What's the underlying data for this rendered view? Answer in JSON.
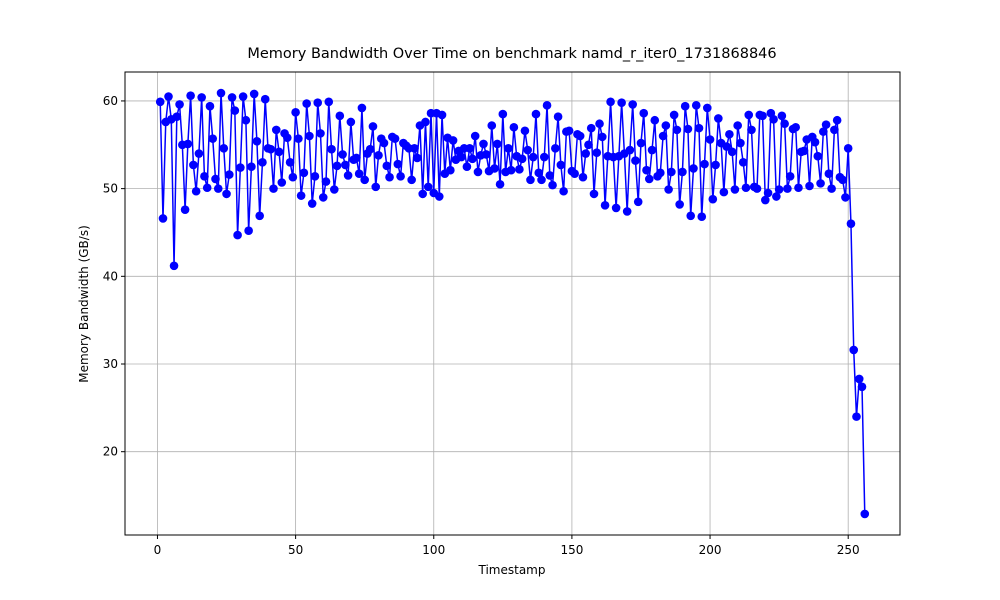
{
  "chart_data": {
    "type": "line",
    "title": "Memory Bandwidth Over Time on benchmark namd_r_iter0_1731868846",
    "x_label": "Timestamp",
    "y_label": "Memory Bandwidth (GB/s)",
    "x": [
      1,
      2,
      3,
      4,
      5,
      6,
      7,
      8,
      9,
      10,
      11,
      12,
      13,
      14,
      15,
      16,
      17,
      18,
      19,
      20,
      21,
      22,
      23,
      24,
      25,
      26,
      27,
      28,
      29,
      30,
      31,
      32,
      33,
      34,
      35,
      36,
      37,
      38,
      39,
      40,
      41,
      42,
      43,
      44,
      45,
      46,
      47,
      48,
      49,
      50,
      51,
      52,
      53,
      54,
      55,
      56,
      57,
      58,
      59,
      60,
      61,
      62,
      63,
      64,
      65,
      66,
      67,
      68,
      69,
      70,
      71,
      72,
      73,
      74,
      75,
      76,
      77,
      78,
      79,
      80,
      81,
      82,
      83,
      84,
      85,
      86,
      87,
      88,
      89,
      90,
      91,
      92,
      93,
      94,
      95,
      96,
      97,
      98,
      99,
      100,
      101,
      102,
      103,
      104,
      105,
      106,
      107,
      108,
      109,
      110,
      111,
      112,
      113,
      114,
      115,
      116,
      117,
      118,
      119,
      120,
      121,
      122,
      123,
      124,
      125,
      126,
      127,
      128,
      129,
      130,
      131,
      132,
      133,
      134,
      135,
      136,
      137,
      138,
      139,
      140,
      141,
      142,
      143,
      144,
      145,
      146,
      147,
      148,
      149,
      150,
      151,
      152,
      153,
      154,
      155,
      156,
      157,
      158,
      159,
      160,
      161,
      162,
      163,
      164,
      165,
      166,
      167,
      168,
      169,
      170,
      171,
      172,
      173,
      174,
      175,
      176,
      177,
      178,
      179,
      180,
      181,
      182,
      183,
      184,
      185,
      186,
      187,
      188,
      189,
      190,
      191,
      192,
      193,
      194,
      195,
      196,
      197,
      198,
      199,
      200,
      201,
      202,
      203,
      204,
      205,
      206,
      207,
      208,
      209,
      210,
      211,
      212,
      213,
      214,
      215,
      216,
      217,
      218,
      219,
      220,
      221,
      222,
      223,
      224,
      225,
      226,
      227,
      228,
      229,
      230,
      231,
      232,
      233,
      234,
      235,
      236,
      237,
      238,
      239,
      240,
      241,
      242,
      243,
      244,
      245,
      246,
      247,
      248,
      249,
      250,
      251,
      252,
      253,
      254,
      255,
      256
    ],
    "series": [
      {
        "name": "Memory Bandwidth",
        "color": "#0000ff",
        "values": [
          59.9,
          46.6,
          57.6,
          60.5,
          57.9,
          41.2,
          58.2,
          59.6,
          55.0,
          47.6,
          55.1,
          60.6,
          52.7,
          49.7,
          54.0,
          60.4,
          51.4,
          50.1,
          59.4,
          55.7,
          51.1,
          50.0,
          60.9,
          54.6,
          49.4,
          51.6,
          60.4,
          58.9,
          44.7,
          52.4,
          60.5,
          57.8,
          45.2,
          52.5,
          60.8,
          55.4,
          46.9,
          53.0,
          60.2,
          54.6,
          54.5,
          50.0,
          56.7,
          54.2,
          50.7,
          56.3,
          55.8,
          53.0,
          51.3,
          58.7,
          55.7,
          49.2,
          51.8,
          59.7,
          56.0,
          48.3,
          51.4,
          59.8,
          56.3,
          49.0,
          50.8,
          59.9,
          54.5,
          49.9,
          52.6,
          58.3,
          53.9,
          52.7,
          51.5,
          57.6,
          53.3,
          53.5,
          51.7,
          59.2,
          51.0,
          54.0,
          54.5,
          57.1,
          50.2,
          53.8,
          55.7,
          55.2,
          52.6,
          51.3,
          55.9,
          55.7,
          52.8,
          51.4,
          55.2,
          54.9,
          54.6,
          51.0,
          54.6,
          53.5,
          57.2,
          49.4,
          57.6,
          50.2,
          58.6,
          49.5,
          58.6,
          49.1,
          58.4,
          51.7,
          55.8,
          52.1,
          55.5,
          53.3,
          54.3,
          53.6,
          54.6,
          52.5,
          54.6,
          53.4,
          56.0,
          51.9,
          53.8,
          55.1,
          53.9,
          52.0,
          57.2,
          52.3,
          55.1,
          50.5,
          58.5,
          51.9,
          54.6,
          52.1,
          57.0,
          53.7,
          52.2,
          53.4,
          56.6,
          54.4,
          51.0,
          53.6,
          58.5,
          51.8,
          51.0,
          53.6,
          59.5,
          51.5,
          50.4,
          54.6,
          58.2,
          52.7,
          49.7,
          56.5,
          56.6,
          52.0,
          51.7,
          56.2,
          56.0,
          51.3,
          54.0,
          55.0,
          56.9,
          49.4,
          54.1,
          57.4,
          55.9,
          48.1,
          53.7,
          59.9,
          53.6,
          47.8,
          53.7,
          59.8,
          54.0,
          47.4,
          54.4,
          59.6,
          53.2,
          48.5,
          55.2,
          58.6,
          52.1,
          51.1,
          54.4,
          57.8,
          51.4,
          51.8,
          56.0,
          57.2,
          49.9,
          51.9,
          58.4,
          56.7,
          48.2,
          51.9,
          59.4,
          56.8,
          46.9,
          52.3,
          59.5,
          56.9,
          46.8,
          52.8,
          59.2,
          55.6,
          48.8,
          52.7,
          58.0,
          55.2,
          49.6,
          54.8,
          56.2,
          54.2,
          49.9,
          57.2,
          55.2,
          53.0,
          50.1,
          58.4,
          56.7,
          50.2,
          50.0,
          58.4,
          58.3,
          48.7,
          49.5,
          58.6,
          57.9,
          49.1,
          49.9,
          58.3,
          57.4,
          50.0,
          51.4,
          56.8,
          57.0,
          50.1,
          54.2,
          54.3,
          55.6,
          50.3,
          55.9,
          55.3,
          53.7,
          50.6,
          56.5,
          57.3,
          51.7,
          50.0,
          56.7,
          57.8,
          51.3,
          51.0,
          49.0,
          54.6,
          46.0,
          31.6,
          24.0,
          28.3,
          27.4,
          12.9
        ]
      }
    ],
    "xlim": [
      -11.75,
      268.75
    ],
    "ylim": [
      10.5,
      63.3
    ],
    "xticks": [
      0,
      50,
      100,
      150,
      200,
      250
    ],
    "yticks": [
      20,
      30,
      40,
      50,
      60
    ],
    "grid": true,
    "marker": "circle"
  }
}
